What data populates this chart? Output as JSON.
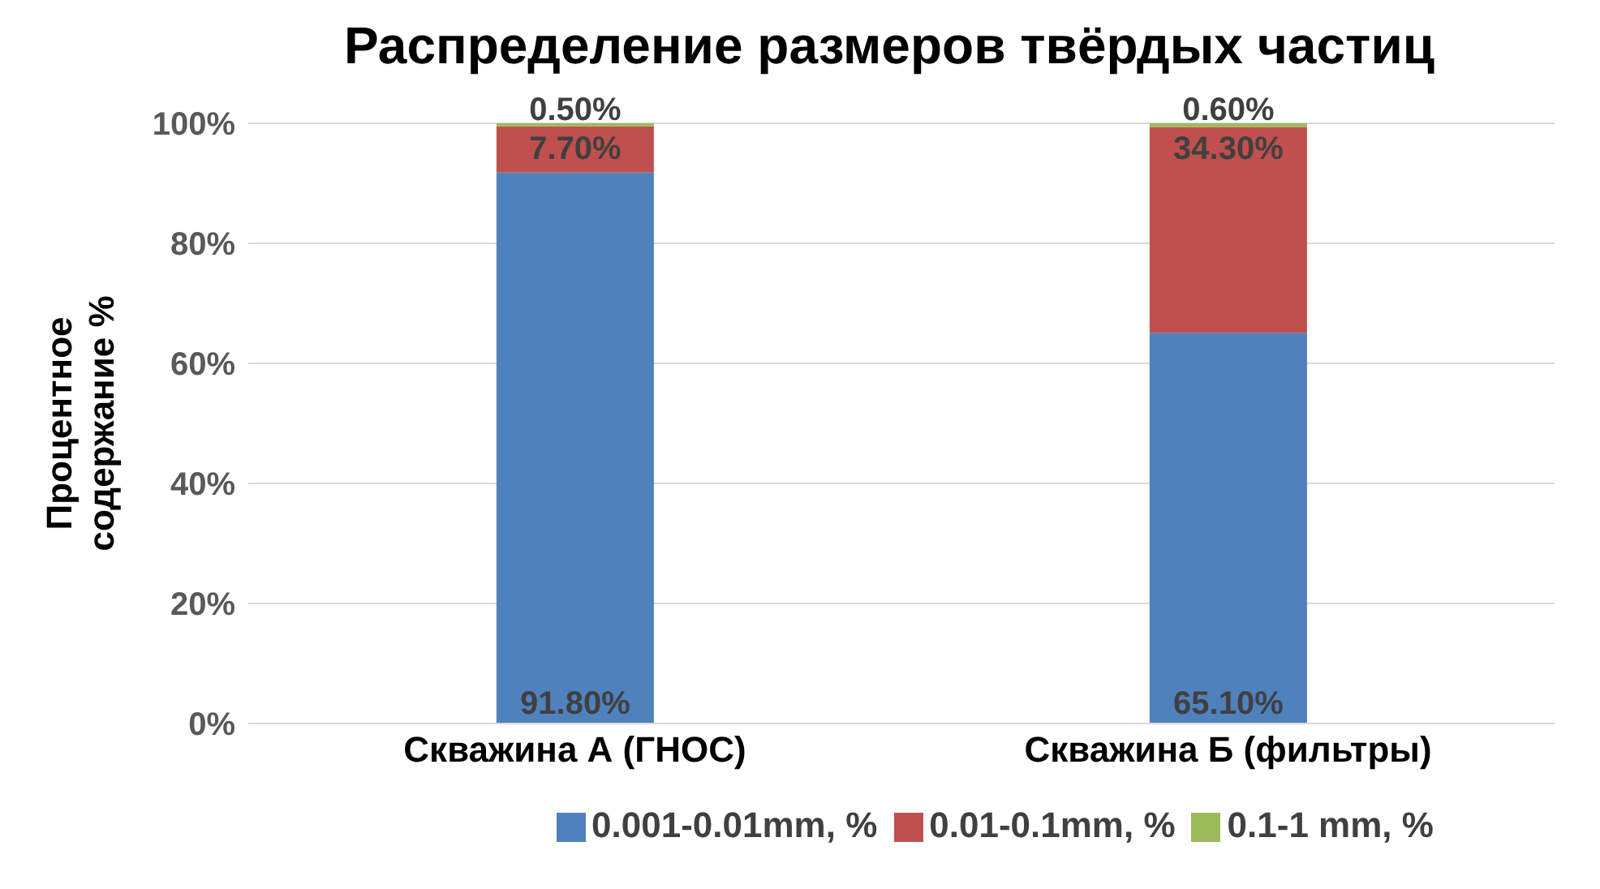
{
  "chart_data": {
    "type": "bar",
    "title": "Распределение размеров твёрдых частиц",
    "ylabel": "Процентное содержание %",
    "categories": [
      "Скважина А (ГНОС)",
      "Скважина Б (фильтры)"
    ],
    "stacked": true,
    "series": [
      {
        "name": "0.001-0.01mm, %",
        "color": "#4f81bd",
        "values": [
          91.8,
          65.1
        ],
        "value_labels": [
          "91.80%",
          "65.10%"
        ]
      },
      {
        "name": "0.01-0.1mm, %",
        "color": "#c0504d",
        "values": [
          7.7,
          34.3
        ],
        "value_labels": [
          "7.70%",
          "34.30%"
        ]
      },
      {
        "name": "0.1-1 mm, %",
        "color": "#9bbb59",
        "values": [
          0.5,
          0.6
        ],
        "value_labels": [
          "0.50%",
          "0.60%"
        ]
      }
    ],
    "ylim": [
      0,
      100
    ],
    "yticks": [
      {
        "value": 0,
        "label": "0%"
      },
      {
        "value": 20,
        "label": "20%"
      },
      {
        "value": 40,
        "label": "40%"
      },
      {
        "value": 60,
        "label": "60%"
      },
      {
        "value": 80,
        "label": "80%"
      },
      {
        "value": 100,
        "label": "100%"
      }
    ],
    "grid": "y",
    "legend": "bottom"
  }
}
